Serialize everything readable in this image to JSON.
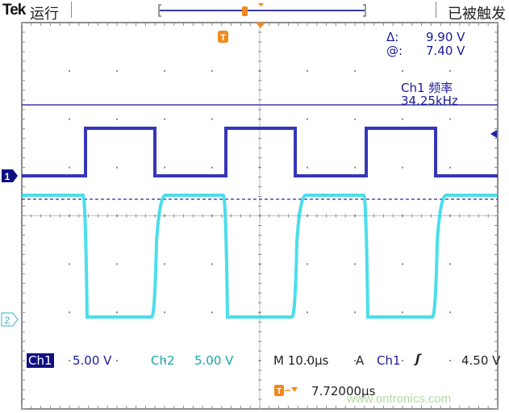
{
  "header": {
    "brand": "Tek",
    "run_state": "运行",
    "trigger_state": "已被触发"
  },
  "cursor_readout": {
    "delta_label": "Δ:",
    "delta_value": "9.90 V",
    "at_label": "@:",
    "at_value": "7.40 V"
  },
  "measurement": {
    "label": "Ch1 频率",
    "value": "34.25kHz"
  },
  "channels": [
    {
      "marker": "1",
      "name": "Ch1",
      "scale": "5.00 V",
      "color": "#1a1a9a"
    },
    {
      "marker": "2",
      "name": "Ch2",
      "scale": "5.00 V",
      "color": "#1ad0e0"
    }
  ],
  "timebase": {
    "label": "M 10.0µs",
    "mode": "A",
    "source": "Ch1",
    "slope_icon": "rising-edge-icon",
    "level": "4.50 V"
  },
  "trigger_position": {
    "value": "7.72000µs"
  },
  "watermark": "www.ontronics.com",
  "colors": {
    "grid": "#999999",
    "ch1": "#1a1a9a",
    "ch2": "#1ad0e0",
    "trigger": "#f08a1a"
  }
}
